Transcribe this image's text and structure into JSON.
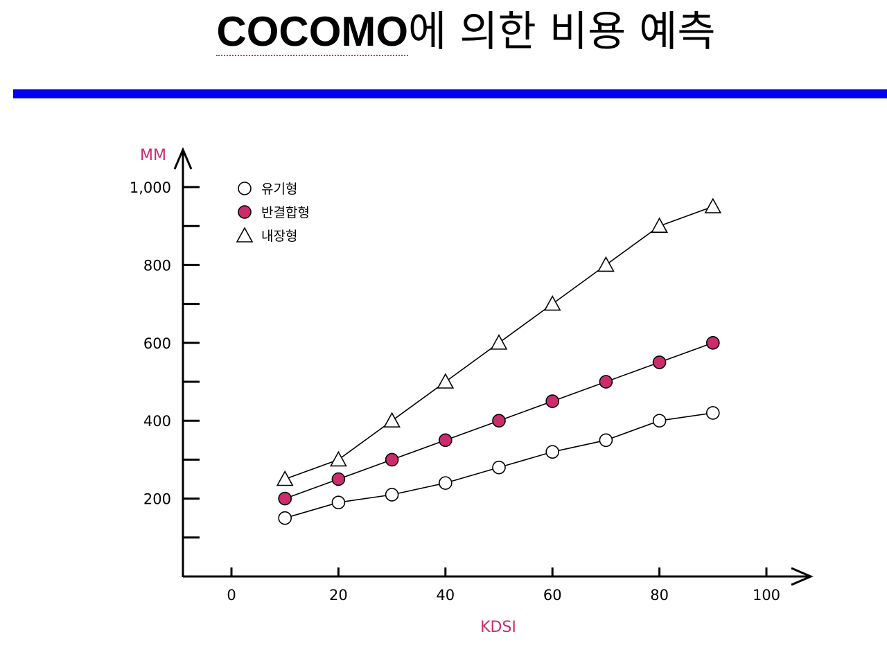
{
  "slide": {
    "title_latin": "COCOMO",
    "title_rest": "에 의한 비용 예측",
    "title_bar_color": "#0000ee"
  },
  "colors": {
    "accent": "#cc2c6e",
    "ink": "#000000"
  },
  "chart_data": {
    "type": "line",
    "xlabel": "KDSI",
    "ylabel": "MM",
    "xlim": [
      -10,
      110
    ],
    "ylim": [
      0,
      1100
    ],
    "xticks": [
      0,
      20,
      40,
      60,
      80,
      100
    ],
    "yticks_labeled": [
      200,
      400,
      600,
      800,
      1000
    ],
    "yticks_minor": [
      100,
      300,
      500,
      700,
      900
    ],
    "ytick_labels": [
      "200",
      "400",
      "600",
      "800",
      "1,000"
    ],
    "xtick_labels": [
      "0",
      "20",
      "40",
      "60",
      "80",
      "100"
    ],
    "x": [
      10,
      20,
      30,
      40,
      50,
      60,
      70,
      80,
      90
    ],
    "grid": false,
    "legend_position": "top-left",
    "series": [
      {
        "name": "유기형",
        "marker": "circle-open",
        "values": [
          150,
          190,
          210,
          240,
          280,
          320,
          350,
          400,
          420
        ]
      },
      {
        "name": "반결합형",
        "marker": "circle-filled",
        "values": [
          200,
          250,
          300,
          350,
          400,
          450,
          500,
          550,
          600
        ]
      },
      {
        "name": "내장형",
        "marker": "triangle-open",
        "values": [
          250,
          300,
          400,
          500,
          600,
          700,
          800,
          900,
          950
        ]
      }
    ]
  }
}
